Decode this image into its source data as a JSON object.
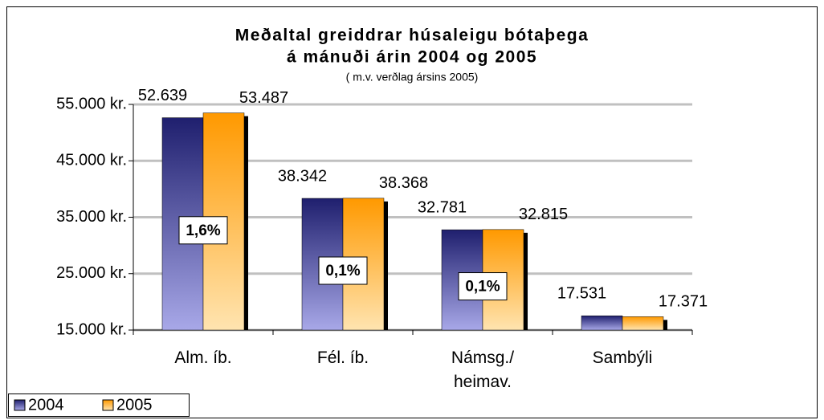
{
  "chart_data": {
    "type": "bar",
    "title": "Meðaltal greiddrar húsaleigu bótaþega",
    "title_line2": "á mánuði árin 2004 og 2005",
    "subtitle": "( m.v. verðlag ársins 2005)",
    "categories": [
      "Alm. íb.",
      "Fél. íb.",
      "Námsg./\nheimav.",
      "Sambýli"
    ],
    "series": [
      {
        "name": "2004",
        "color": "#1f1f6e",
        "color_light": "#a8a8e8",
        "values": [
          52639,
          38342,
          32781,
          17531
        ],
        "value_labels": [
          "52.639",
          "38.342",
          "32.781",
          "17.531"
        ]
      },
      {
        "name": "2005",
        "color": "#ff9900",
        "color_light": "#ffe4b0",
        "values": [
          53487,
          38368,
          32815,
          17371
        ],
        "value_labels": [
          "53.487",
          "38.368",
          "32.815",
          "17.371"
        ]
      }
    ],
    "annotations": [
      {
        "category": 0,
        "text": "1,6%"
      },
      {
        "category": 1,
        "text": "0,1%"
      },
      {
        "category": 2,
        "text": "0,1%"
      }
    ],
    "ylim": [
      15000,
      55000
    ],
    "yticks": [
      {
        "value": 15000,
        "label": "15.000 kr."
      },
      {
        "value": 25000,
        "label": "25.000 kr."
      },
      {
        "value": 35000,
        "label": "35.000 kr."
      },
      {
        "value": 45000,
        "label": "45.000 kr."
      },
      {
        "value": 55000,
        "label": "55.000 kr."
      }
    ],
    "grid": true,
    "legend": "bottom-left"
  }
}
